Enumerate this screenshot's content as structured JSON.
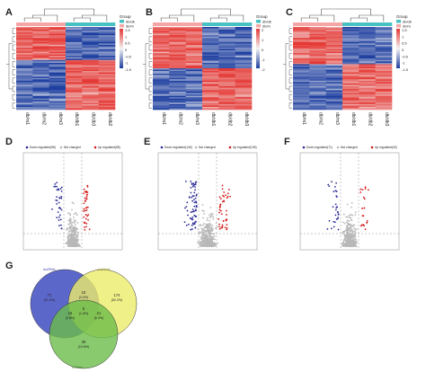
{
  "panels": {
    "A": "A",
    "B": "B",
    "C": "C",
    "D": "D",
    "E": "E",
    "F": "F",
    "G": "G"
  },
  "colors": {
    "heat_high": "#e53935",
    "heat_low": "#1e3fa0",
    "heat_mid": "#f3f3f3",
    "group_db_m": "#48c1c2",
    "group_db_m2": "#f4a5a5",
    "volcano_down": "#2a2a96",
    "volcano_up": "#d41a1a",
    "volcano_ns": "#b8b8b8",
    "venn_blue": "#4a57c4",
    "venn_yellow": "#ecec6a",
    "venn_green": "#6cbd4a"
  },
  "heatmaps": [
    {
      "id": "A",
      "legend_ticks": [
        "1.5",
        "1",
        "0.5",
        "0",
        "-0.5",
        "-1",
        "-1.5"
      ],
      "group_title": "Group",
      "group_labels": [
        "db/db",
        "db/m"
      ],
      "samples": [
        "db/m1",
        "db/m2",
        "db/m3",
        "db/db1",
        "db/db3",
        "db/db2"
      ]
    },
    {
      "id": "B",
      "legend_ticks": [
        "2",
        "1",
        "0",
        "-1",
        "-2"
      ],
      "group_title": "Group",
      "group_labels": [
        "db/db",
        "db/m"
      ],
      "samples": [
        "db/m1",
        "db/m2",
        "db/m3",
        "db/db1",
        "db/db2",
        "db/db3"
      ]
    },
    {
      "id": "C",
      "legend_ticks": [
        "1.5",
        "1",
        "0.5",
        "0",
        "-0.5",
        "-1",
        "-1.5"
      ],
      "group_title": "Group",
      "group_labels": [
        "db/db",
        "db/m"
      ],
      "samples": [
        "db/m1",
        "db/m2",
        "db/m3",
        "db/db1",
        "db/db2",
        "db/db3"
      ]
    }
  ],
  "volcanos": [
    {
      "id": "D",
      "legend": [
        "Down regulated(98)",
        "Not changed",
        "Up regulated(98)"
      ]
    },
    {
      "id": "E",
      "legend": [
        "Down regulated(145)",
        "Not changed",
        "Up regulated(135)"
      ]
    },
    {
      "id": "F",
      "legend": [
        "Down regulated(71)",
        "Not changed",
        "Up regulated(40)"
      ]
    }
  ],
  "venn": {
    "set_labels": [
      "lncRNA",
      "circRNA",
      "mRNA"
    ],
    "region_values": [
      {
        "count": "71",
        "pct": "(21.3%)"
      },
      {
        "count": "10",
        "pct": "(3.0%)"
      },
      {
        "count": "174",
        "pct": "(52.2%)"
      },
      {
        "count": "16",
        "pct": "(4.8%)"
      },
      {
        "count": "21",
        "pct": "(6.3%)"
      },
      {
        "count": "5",
        "pct": "(1.5%)"
      },
      {
        "count": "36",
        "pct": "(10.8%)"
      }
    ]
  }
}
